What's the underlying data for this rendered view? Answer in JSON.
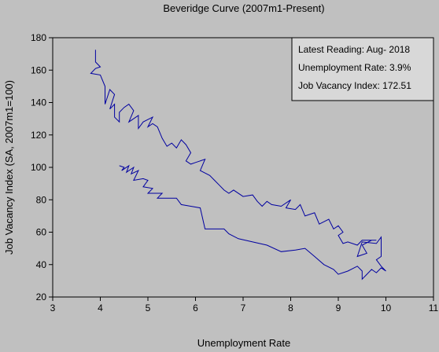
{
  "chart_data": {
    "type": "line",
    "title": "Beveridge Curve (2007m1-Present)",
    "xlabel": "Unemployment Rate",
    "ylabel": "Job Vacancy Index (SA, 2007m1=100)",
    "xlim": [
      3,
      11
    ],
    "ylim": [
      20,
      180
    ],
    "xticks": [
      3,
      4,
      5,
      6,
      7,
      8,
      9,
      10,
      11
    ],
    "yticks": [
      20,
      40,
      60,
      80,
      100,
      120,
      140,
      160,
      180
    ],
    "grid": false,
    "legend": "none",
    "annotation": {
      "position": "top-right",
      "lines": [
        "Latest Reading: Aug- 2018",
        "Unemployment Rate: 3.9%",
        "Job Vacancy Index: 172.51"
      ]
    },
    "colors": {
      "line": "#0000a0",
      "plot_bg": "#c0c0c0",
      "annotation_bg": "#d8d8d8"
    },
    "series": [
      {
        "points": [
          [
            4.4,
            101
          ],
          [
            4.5,
            100
          ],
          [
            4.45,
            98
          ],
          [
            4.6,
            101
          ],
          [
            4.55,
            97
          ],
          [
            4.7,
            100
          ],
          [
            4.65,
            96
          ],
          [
            4.8,
            98
          ],
          [
            4.7,
            92
          ],
          [
            4.9,
            93
          ],
          [
            5.0,
            92
          ],
          [
            4.9,
            88
          ],
          [
            5.1,
            87
          ],
          [
            5.0,
            84
          ],
          [
            5.3,
            84
          ],
          [
            5.2,
            81
          ],
          [
            5.4,
            81
          ],
          [
            5.6,
            81
          ],
          [
            5.7,
            77
          ],
          [
            5.9,
            76
          ],
          [
            6.1,
            75
          ],
          [
            6.2,
            62
          ],
          [
            6.4,
            62
          ],
          [
            6.6,
            62
          ],
          [
            6.7,
            59
          ],
          [
            6.9,
            56
          ],
          [
            7.2,
            54
          ],
          [
            7.5,
            52
          ],
          [
            7.8,
            48
          ],
          [
            8.1,
            49
          ],
          [
            8.3,
            50
          ],
          [
            8.5,
            45
          ],
          [
            8.7,
            40
          ],
          [
            8.9,
            37
          ],
          [
            9.0,
            34
          ],
          [
            9.2,
            36
          ],
          [
            9.4,
            39
          ],
          [
            9.5,
            36
          ],
          [
            9.5,
            31
          ],
          [
            9.6,
            34
          ],
          [
            9.7,
            37
          ],
          [
            9.8,
            35
          ],
          [
            9.9,
            38
          ],
          [
            10.0,
            36
          ],
          [
            9.9,
            39
          ],
          [
            9.8,
            43
          ],
          [
            9.9,
            45
          ],
          [
            9.9,
            57
          ],
          [
            9.8,
            53
          ],
          [
            9.5,
            54
          ],
          [
            9.4,
            45
          ],
          [
            9.6,
            47
          ],
          [
            9.5,
            52
          ],
          [
            9.7,
            55
          ],
          [
            9.8,
            55
          ],
          [
            9.5,
            55
          ],
          [
            9.4,
            52
          ],
          [
            9.2,
            54
          ],
          [
            9.1,
            53
          ],
          [
            9.0,
            58
          ],
          [
            9.1,
            60
          ],
          [
            9.0,
            64
          ],
          [
            8.9,
            62
          ],
          [
            8.8,
            68
          ],
          [
            8.6,
            65
          ],
          [
            8.5,
            72
          ],
          [
            8.3,
            70
          ],
          [
            8.2,
            77
          ],
          [
            8.1,
            74
          ],
          [
            7.9,
            75
          ],
          [
            8.0,
            80
          ],
          [
            7.8,
            76
          ],
          [
            7.6,
            77
          ],
          [
            7.5,
            79
          ],
          [
            7.4,
            76
          ],
          [
            7.3,
            79
          ],
          [
            7.2,
            83
          ],
          [
            7.0,
            82
          ],
          [
            6.8,
            86
          ],
          [
            6.7,
            84
          ],
          [
            6.6,
            86
          ],
          [
            6.5,
            89
          ],
          [
            6.4,
            92
          ],
          [
            6.3,
            95
          ],
          [
            6.1,
            98
          ],
          [
            6.2,
            105
          ],
          [
            6.0,
            103
          ],
          [
            5.9,
            102
          ],
          [
            5.8,
            104
          ],
          [
            5.9,
            109
          ],
          [
            5.8,
            114
          ],
          [
            5.7,
            117
          ],
          [
            5.6,
            112
          ],
          [
            5.5,
            115
          ],
          [
            5.4,
            113
          ],
          [
            5.3,
            118
          ],
          [
            5.2,
            125
          ],
          [
            5.1,
            127
          ],
          [
            5.0,
            125
          ],
          [
            5.1,
            131
          ],
          [
            4.9,
            128
          ],
          [
            4.8,
            124
          ],
          [
            4.8,
            132
          ],
          [
            4.6,
            128
          ],
          [
            4.7,
            135
          ],
          [
            4.6,
            139
          ],
          [
            4.5,
            137
          ],
          [
            4.4,
            134
          ],
          [
            4.4,
            128
          ],
          [
            4.3,
            131
          ],
          [
            4.3,
            139
          ],
          [
            4.2,
            136
          ],
          [
            4.3,
            145
          ],
          [
            4.2,
            148
          ],
          [
            4.1,
            139
          ],
          [
            4.1,
            150
          ],
          [
            4.0,
            157
          ],
          [
            3.8,
            158
          ],
          [
            3.9,
            161
          ],
          [
            4.0,
            162
          ],
          [
            3.9,
            165
          ],
          [
            3.9,
            172.51
          ]
        ]
      }
    ]
  }
}
